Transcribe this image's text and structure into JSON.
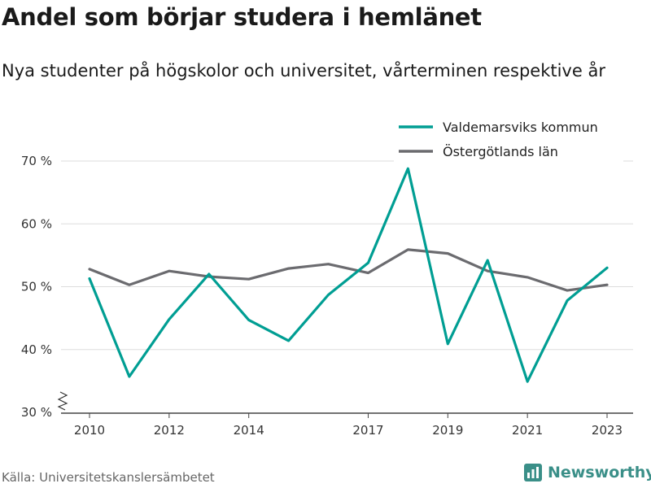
{
  "chart_data": {
    "type": "line",
    "title": "Andel som börjar studera i hemlänet",
    "subtitle": "Nya studenter på högskolor och universitet, vårterminen respektive år",
    "x": [
      2010,
      2011,
      2012,
      2013,
      2014,
      2015,
      2016,
      2017,
      2018,
      2019,
      2020,
      2021,
      2022,
      2023
    ],
    "x_tick_labels": [
      "2010",
      "2012",
      "2014",
      "2017",
      "2019",
      "2021",
      "2023"
    ],
    "x_tick_values": [
      2010,
      2012,
      2014,
      2017,
      2019,
      2021,
      2023
    ],
    "y_tick_labels": [
      "70 %",
      "60 %",
      "50 %",
      "40 %",
      "30 %"
    ],
    "y_tick_values": [
      70,
      60,
      50,
      40,
      30
    ],
    "ylim": [
      30,
      70
    ],
    "axis_break": true,
    "grid": true,
    "legend_position": "top-right",
    "series": [
      {
        "name": "Valdemarsviks kommun",
        "color": "#009e93",
        "values": [
          51.3,
          35.7,
          44.8,
          52.0,
          44.7,
          41.4,
          48.7,
          53.8,
          68.8,
          40.9,
          54.2,
          34.9,
          47.8,
          53.0
        ]
      },
      {
        "name": "Östergötlands län",
        "color": "#6b6b6f",
        "values": [
          52.8,
          50.3,
          52.5,
          51.6,
          51.2,
          52.9,
          53.6,
          52.2,
          55.9,
          55.3,
          52.5,
          51.5,
          49.4,
          50.3
        ]
      }
    ],
    "source": "Källa: Universitetskanslersämbetet"
  },
  "branding": {
    "name": "Newsworthy",
    "icon": "bar-chart-logo-icon",
    "color": "#3a8f88"
  }
}
